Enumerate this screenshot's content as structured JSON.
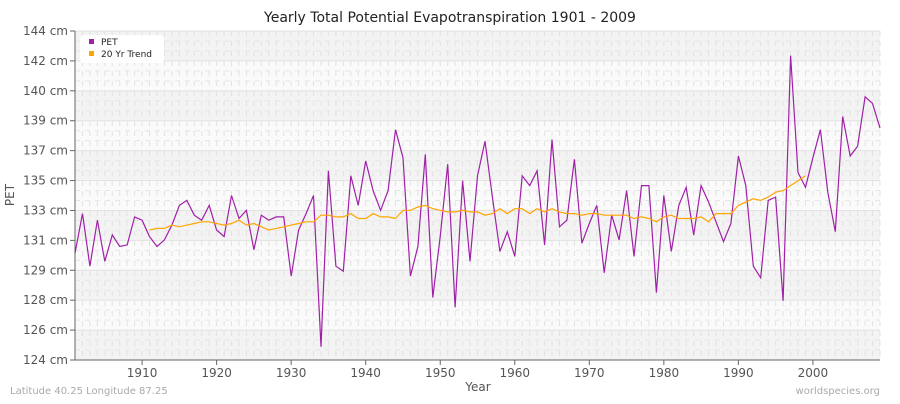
{
  "chart_data": {
    "type": "line",
    "title": "Yearly Total Potential Evapotranspiration 1901 - 2009",
    "xlabel": "Year",
    "ylabel": "PET",
    "xlim": [
      1901,
      2009
    ],
    "ylim": [
      124,
      144
    ],
    "y_tick_labels": [
      "124 cm",
      "126 cm",
      "128 cm",
      "129 cm",
      "131 cm",
      "133 cm",
      "135 cm",
      "137 cm",
      "139 cm",
      "140 cm",
      "142 cm",
      "144 cm"
    ],
    "x_ticks": [
      1910,
      1920,
      1930,
      1940,
      1950,
      1960,
      1970,
      1980,
      1990,
      2000
    ],
    "grid": true,
    "legend_position": "top-left",
    "series": [
      {
        "name": "PET",
        "color": "#a020a8",
        "x_start": 1901,
        "values": [
          130.5,
          132.9,
          129.7,
          132.5,
          130.0,
          131.6,
          130.9,
          131.0,
          132.7,
          132.5,
          131.5,
          130.9,
          131.3,
          132.2,
          133.4,
          133.7,
          132.8,
          132.5,
          133.4,
          131.9,
          131.5,
          134.0,
          132.6,
          133.1,
          130.7,
          132.8,
          132.5,
          132.7,
          132.7,
          129.1,
          131.9,
          132.9,
          134.0,
          124.8,
          135.5,
          129.7,
          129.4,
          135.2,
          133.4,
          136.1,
          134.3,
          133.1,
          134.3,
          138.0,
          136.3,
          129.1,
          130.9,
          136.5,
          127.8,
          131.5,
          135.9,
          127.2,
          134.9,
          130.0,
          135.2,
          137.3,
          133.9,
          130.6,
          131.8,
          130.3,
          135.2,
          134.6,
          135.5,
          131.0,
          137.4,
          132.1,
          132.5,
          136.2,
          131.1,
          132.3,
          133.4,
          129.3,
          132.8,
          131.3,
          134.3,
          130.3,
          134.6,
          134.6,
          128.1,
          134.0,
          130.6,
          133.4,
          134.5,
          131.6,
          134.6,
          133.6,
          132.4,
          131.2,
          132.3,
          136.4,
          134.6,
          129.7,
          129.0,
          133.7,
          133.9,
          127.6,
          142.5,
          135.4,
          134.5,
          136.3,
          138.0,
          134.2,
          131.8,
          138.8,
          136.4,
          137.0,
          140.0,
          139.6,
          138.1
        ]
      },
      {
        "name": "20 Yr Trend",
        "color": "#ffa500",
        "x_start": 1911,
        "values": [
          131.9,
          132.0,
          132.0,
          132.2,
          132.1,
          132.2,
          132.3,
          132.4,
          132.4,
          132.3,
          132.2,
          132.3,
          132.5,
          132.2,
          132.3,
          132.1,
          131.9,
          132.0,
          132.1,
          132.2,
          132.3,
          132.4,
          132.4,
          132.8,
          132.8,
          132.7,
          132.7,
          132.9,
          132.6,
          132.6,
          132.9,
          132.7,
          132.7,
          132.6,
          133.1,
          133.1,
          133.3,
          133.4,
          133.2,
          133.1,
          133.0,
          133.0,
          133.1,
          133.0,
          133.0,
          132.8,
          132.9,
          133.2,
          132.9,
          133.2,
          133.2,
          132.9,
          133.2,
          133.0,
          133.2,
          133.0,
          132.9,
          132.9,
          132.8,
          132.9,
          132.9,
          132.8,
          132.8,
          132.8,
          132.8,
          132.6,
          132.7,
          132.6,
          132.4,
          132.7,
          132.8,
          132.6,
          132.6,
          132.6,
          132.7,
          132.4,
          132.9,
          132.9,
          132.9,
          133.4,
          133.6,
          133.8,
          133.7,
          133.9,
          134.2,
          134.3,
          134.6,
          134.9,
          135.2
        ]
      }
    ]
  },
  "footer": {
    "location": "Latitude 40.25 Longitude 87.25",
    "source": "worldspecies.org"
  }
}
